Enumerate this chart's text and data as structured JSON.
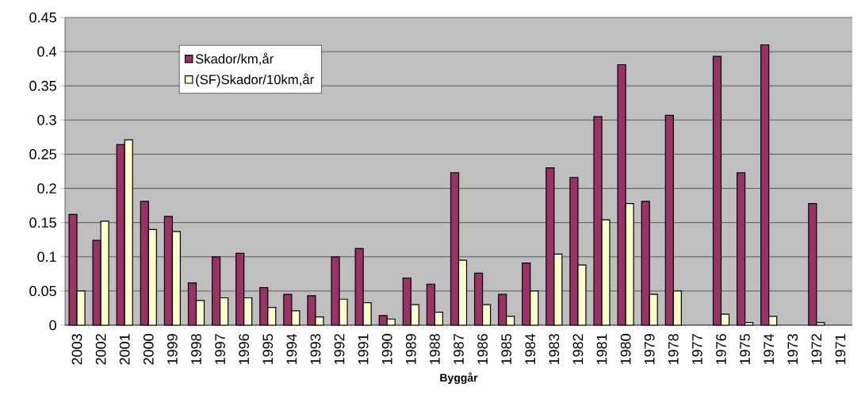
{
  "chart_data": {
    "type": "bar",
    "xlabel": "Byggår",
    "categories": [
      "2003",
      "2002",
      "2001",
      "2000",
      "1999",
      "1998",
      "1997",
      "1996",
      "1995",
      "1994",
      "1993",
      "1992",
      "1991",
      "1990",
      "1989",
      "1988",
      "1987",
      "1986",
      "1985",
      "1984",
      "1983",
      "1982",
      "1981",
      "1980",
      "1979",
      "1978",
      "1977",
      "1976",
      "1975",
      "1974",
      "1973",
      "1972",
      "1971"
    ],
    "series": [
      {
        "name": "Skador/km,år",
        "color": "#993366",
        "values": [
          0.162,
          0.124,
          0.264,
          0.181,
          0.159,
          0.062,
          0.1,
          0.105,
          0.055,
          0.045,
          0.043,
          0.1,
          0.112,
          0.014,
          0.069,
          0.06,
          0.223,
          0.076,
          0.045,
          0.091,
          0.23,
          0.216,
          0.305,
          0.381,
          0.181,
          0.307,
          null,
          0.393,
          0.223,
          0.41,
          null,
          0.178,
          null
        ]
      },
      {
        "name": "(SF)Skador/10km,år",
        "color": "#ffffcc",
        "values": [
          0.05,
          0.152,
          0.271,
          0.14,
          0.137,
          0.036,
          0.04,
          0.04,
          0.026,
          0.021,
          0.012,
          0.038,
          0.033,
          0.009,
          0.03,
          0.019,
          0.095,
          0.03,
          0.013,
          0.05,
          0.104,
          0.088,
          0.154,
          0.178,
          0.045,
          0.05,
          null,
          0.016,
          0.004,
          0.013,
          null,
          0.004,
          null
        ]
      }
    ],
    "ylim": [
      0,
      0.45
    ],
    "yticks": [
      0,
      0.05,
      0.1,
      0.15,
      0.2,
      0.25,
      0.3,
      0.35,
      0.4,
      0.45
    ],
    "grid": "y",
    "legend": "top left"
  }
}
